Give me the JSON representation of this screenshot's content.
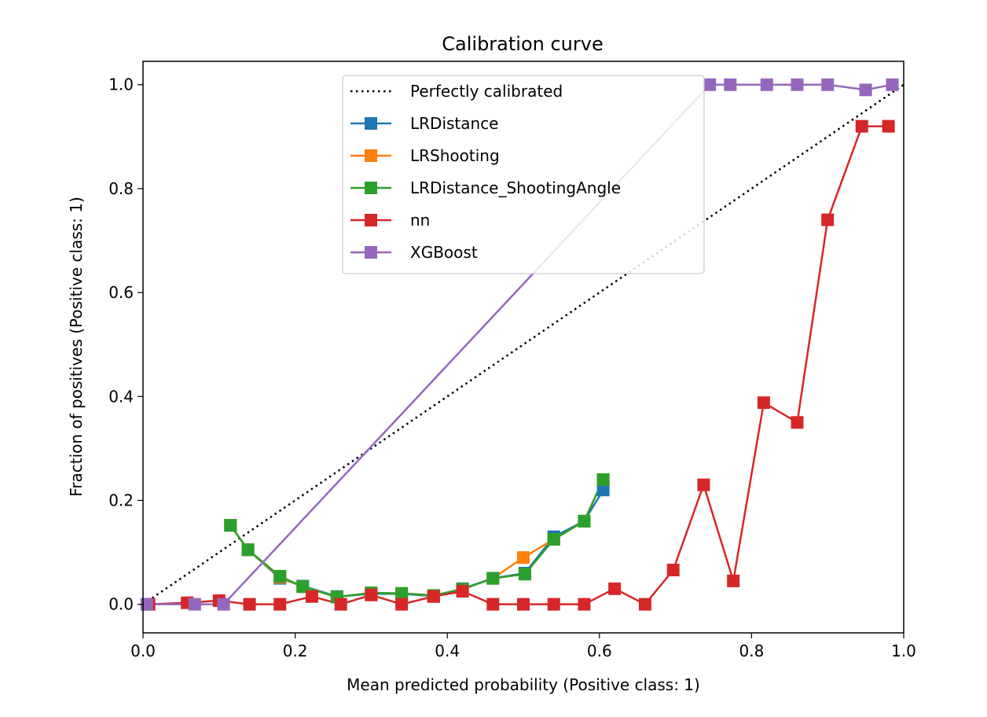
{
  "chart_data": {
    "type": "line",
    "title": "Calibration curve",
    "xlabel": "Mean predicted probability (Positive class: 1)",
    "ylabel": "Fraction of positives (Positive class: 1)",
    "xlim": [
      0.0,
      1.0
    ],
    "ylim": [
      -0.055,
      1.045
    ],
    "xticks": [
      "0.0",
      "0.2",
      "0.4",
      "0.6",
      "0.8",
      "1.0"
    ],
    "yticks": [
      "0.0",
      "0.2",
      "0.4",
      "0.6",
      "0.8",
      "1.0"
    ],
    "grid": false,
    "legend_position": "top-center",
    "reference": {
      "name": "Perfectly calibrated",
      "x": [
        0,
        1
      ],
      "y": [
        0,
        1
      ],
      "color": "#000000",
      "style": "dotted"
    },
    "series": [
      {
        "name": "LRDistance",
        "color": "#1f77b4",
        "x": [
          0.115,
          0.138,
          0.18,
          0.21,
          0.255,
          0.3,
          0.34,
          0.382,
          0.42,
          0.46,
          0.502,
          0.54,
          0.58,
          0.605
        ],
        "y": [
          0.152,
          0.105,
          0.05,
          0.035,
          0.015,
          0.02,
          0.02,
          0.016,
          0.03,
          0.05,
          0.06,
          0.13,
          0.16,
          0.22
        ]
      },
      {
        "name": "LRShooting",
        "color": "#ff7f0e",
        "x": [
          0.115,
          0.138,
          0.18,
          0.21,
          0.255,
          0.3,
          0.34,
          0.382,
          0.42,
          0.46,
          0.5,
          0.54,
          0.58,
          0.605
        ],
        "y": [
          0.152,
          0.105,
          0.052,
          0.034,
          0.014,
          0.022,
          0.021,
          0.017,
          0.029,
          0.05,
          0.09,
          0.125,
          0.16,
          0.24
        ]
      },
      {
        "name": "LRDistance_ShootingAngle",
        "color": "#2ca02c",
        "x": [
          0.115,
          0.138,
          0.18,
          0.21,
          0.255,
          0.3,
          0.34,
          0.382,
          0.42,
          0.46,
          0.502,
          0.54,
          0.58,
          0.605
        ],
        "y": [
          0.152,
          0.105,
          0.054,
          0.034,
          0.014,
          0.022,
          0.021,
          0.017,
          0.029,
          0.05,
          0.058,
          0.125,
          0.16,
          0.24
        ]
      },
      {
        "name": "nn",
        "color": "#d62728",
        "x": [
          0.008,
          0.058,
          0.1,
          0.14,
          0.18,
          0.222,
          0.26,
          0.3,
          0.34,
          0.382,
          0.42,
          0.46,
          0.5,
          0.54,
          0.58,
          0.62,
          0.66,
          0.697,
          0.737,
          0.776,
          0.816,
          0.86,
          0.9,
          0.945,
          0.98
        ],
        "y": [
          0.0,
          0.003,
          0.007,
          0.0,
          0.0,
          0.015,
          0.0,
          0.018,
          0.0,
          0.015,
          0.025,
          0.0,
          0.0,
          0.0,
          0.0,
          0.03,
          0.0,
          0.066,
          0.23,
          0.045,
          0.388,
          0.35,
          0.74,
          0.92,
          0.92
        ]
      },
      {
        "name": "XGBoost",
        "color": "#9467bd",
        "x": [
          0.005,
          0.068,
          0.106,
          0.745,
          0.772,
          0.82,
          0.86,
          0.9,
          0.95,
          0.985
        ],
        "y": [
          0.0,
          0.0,
          0.0,
          1.0,
          1.0,
          1.0,
          1.0,
          1.0,
          0.99,
          1.0
        ]
      }
    ]
  }
}
